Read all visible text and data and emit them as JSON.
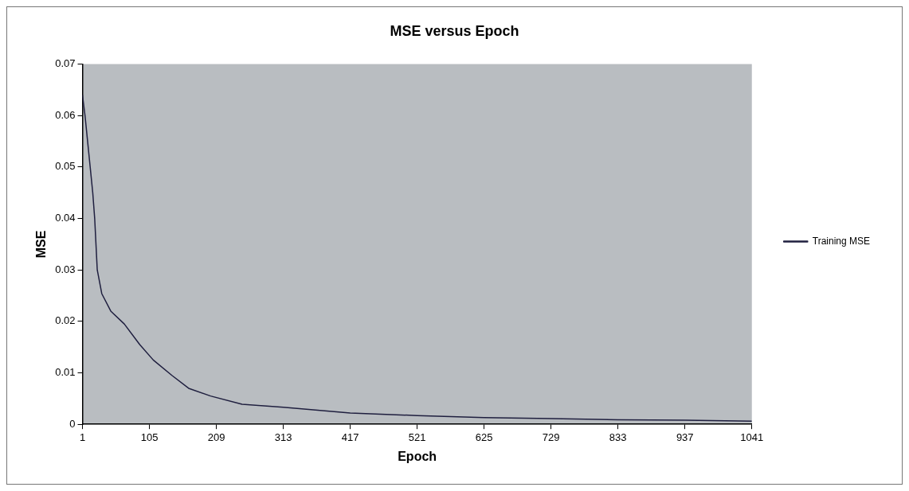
{
  "chart_data": {
    "type": "line",
    "title": "MSE versus Epoch",
    "xlabel": "Epoch",
    "ylabel": "MSE",
    "x": [
      1,
      5,
      9,
      13,
      17,
      20,
      24,
      31,
      45,
      66,
      90,
      111,
      140,
      166,
      200,
      249,
      313,
      417,
      521,
      625,
      729,
      833,
      937,
      1041
    ],
    "series": [
      {
        "name": "Training MSE",
        "color": "#1f1f3f",
        "values": [
          0.064,
          0.06,
          0.055,
          0.05,
          0.045,
          0.04,
          0.03,
          0.0254,
          0.022,
          0.0195,
          0.0155,
          0.0125,
          0.0095,
          0.007,
          0.0055,
          0.0039,
          0.0033,
          0.0022,
          0.0017,
          0.0013,
          0.0011,
          0.0009,
          0.0008,
          0.0006
        ]
      }
    ],
    "xlim": [
      1,
      1041
    ],
    "xticks": [
      1,
      105,
      209,
      313,
      417,
      521,
      625,
      729,
      833,
      937,
      1041
    ],
    "ylim": [
      0,
      0.07
    ],
    "yticks": [
      0,
      0.01,
      0.02,
      0.03,
      0.04,
      0.05,
      0.06,
      0.07
    ],
    "grid": false,
    "legend": "right",
    "marker": "none",
    "line_style": "solid"
  }
}
